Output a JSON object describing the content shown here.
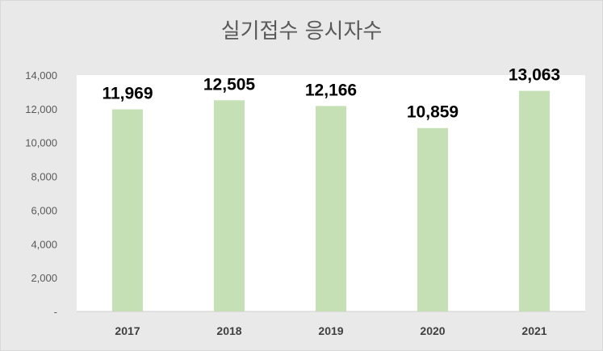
{
  "chart_data": {
    "type": "bar",
    "title": "실기접수 응시자수",
    "categories": [
      "2017",
      "2018",
      "2019",
      "2020",
      "2021"
    ],
    "values": [
      11969,
      12505,
      12166,
      10859,
      13063
    ],
    "data_labels": [
      "11,969",
      "12,505",
      "12,166",
      "10,859",
      "13,063"
    ],
    "ylim": [
      0,
      14000
    ],
    "yticks": [
      0,
      2000,
      4000,
      6000,
      8000,
      10000,
      12000,
      14000
    ],
    "ytick_labels": [
      "-",
      "2,000",
      "4,000",
      "6,000",
      "8,000",
      "10,000",
      "12,000",
      "14,000"
    ],
    "grid": false,
    "bar_color": "#c5e0b4",
    "plot_background": "#ffffff",
    "chart_background": "#e9e9e9"
  }
}
